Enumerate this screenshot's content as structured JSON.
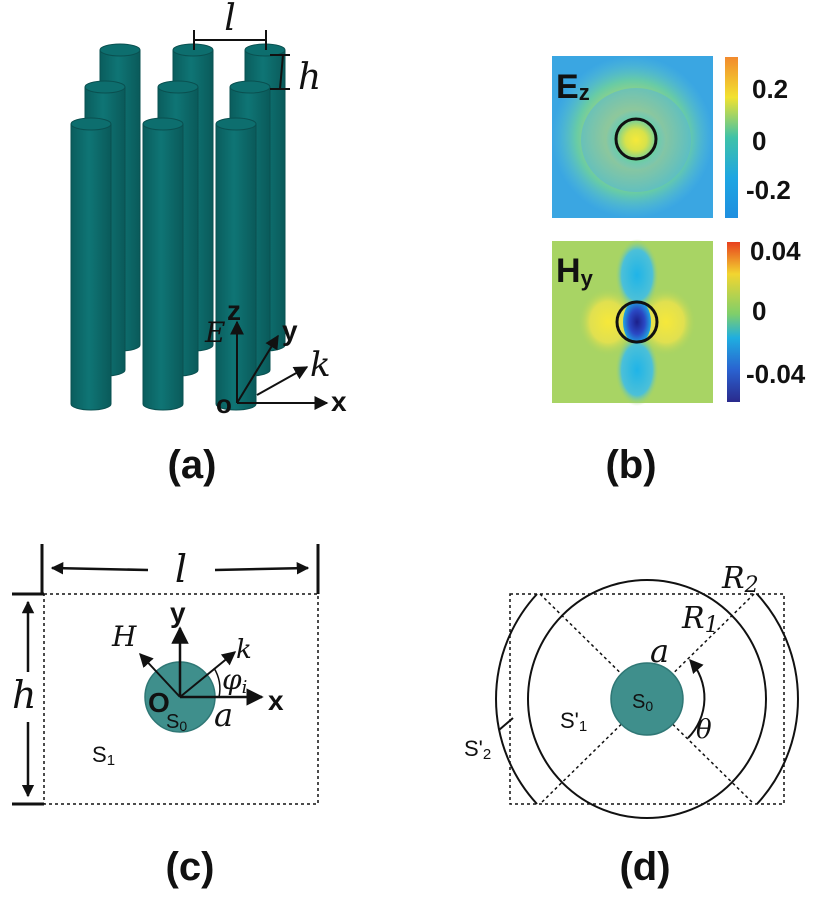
{
  "panel_a": {
    "caption": "(a)",
    "lattice_constant_label": "l",
    "height_label": "h",
    "axis_z": "z",
    "axis_y": "y",
    "axis_x": "x",
    "origin": "o",
    "field_e": "E",
    "wave_k": "k",
    "cylinder_color": "#0d6e6e"
  },
  "panel_b": {
    "caption": "(b)",
    "ez": {
      "label_main": "E",
      "label_sub": "z",
      "tick_top": "0.2",
      "tick_mid": "0",
      "tick_bot": "-0.2"
    },
    "hy": {
      "label_main": "H",
      "label_sub": "y",
      "tick_top": "0.04",
      "tick_mid": "0",
      "tick_bot": "-0.04"
    }
  },
  "panel_c": {
    "caption": "(c)",
    "width_label": "l",
    "height_label": "h",
    "axis_y": "y",
    "axis_x": "x",
    "origin": "O",
    "field_h": "H",
    "wave_k": "k",
    "angle_main": "φ",
    "angle_sub": "i",
    "radius": "a",
    "region_s0_main": "S",
    "region_s0_sub": "0",
    "region_s1_main": "S",
    "region_s1_sub": "1"
  },
  "panel_d": {
    "caption": "(d)",
    "r2_main": "R",
    "r2_sub": "2",
    "r1_main": "R",
    "r1_sub": "1",
    "radius": "a",
    "region_s0_main": "S",
    "region_s0_sub": "0",
    "region_s1p_main": "S'",
    "region_s1p_sub": "1",
    "region_s2p_main": "S'",
    "region_s2p_sub": "2",
    "angle": "θ"
  }
}
